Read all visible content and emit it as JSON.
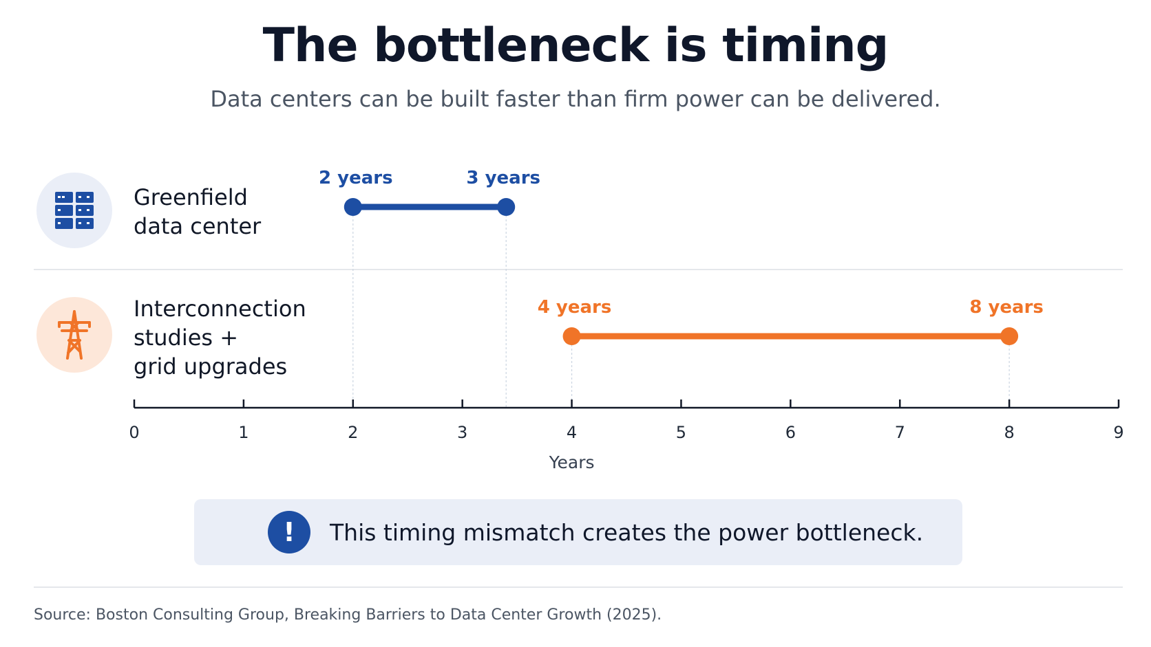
{
  "title": "The bottleneck is timing",
  "subtitle": "Data centers can be built faster than firm power can be delivered.",
  "rows": [
    {
      "label_lines": [
        "Greenfield",
        "data center"
      ],
      "icon": "server-rack-icon"
    },
    {
      "label_lines": [
        "Interconnection",
        "studies +",
        "grid upgrades"
      ],
      "icon": "power-tower-icon"
    }
  ],
  "chart_data": {
    "type": "range-bar",
    "xlabel": "Years",
    "xlim": [
      0,
      9
    ],
    "ticks": [
      "0",
      "1",
      "2",
      "3",
      "4",
      "5",
      "6",
      "7",
      "8",
      "9"
    ],
    "series": [
      {
        "start": 2,
        "end": 3.4,
        "start_label": "2 years",
        "end_label": "3 years",
        "color": "#1d4ea3"
      },
      {
        "start": 4,
        "end": 8,
        "start_label": "4 years",
        "end_label": "8 years",
        "color": "#f07428"
      }
    ]
  },
  "callout": {
    "text": "This timing mismatch creates the power bottleneck.",
    "icon": "alert-icon",
    "icon_glyph": "!"
  },
  "source": "Source: Boston Consulting Group, Breaking Barriers to Data Center Growth (2025).",
  "colors": {
    "blue": "#1d4ea3",
    "orange": "#f07428",
    "axis": "#111827",
    "guide": "#cbd5e1"
  }
}
